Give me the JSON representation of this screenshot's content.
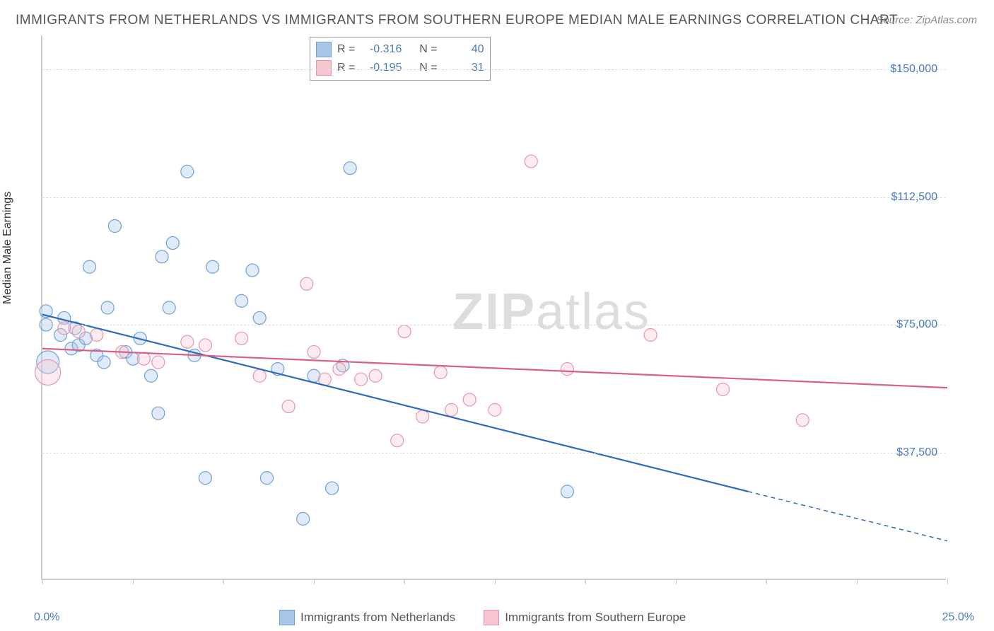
{
  "title": "IMMIGRANTS FROM NETHERLANDS VS IMMIGRANTS FROM SOUTHERN EUROPE MEDIAN MALE EARNINGS CORRELATION CHART",
  "source_label": "Source:",
  "source_name": "ZipAtlas.com",
  "watermark_zip": "ZIP",
  "watermark_atlas": "atlas",
  "y_axis_label": "Median Male Earnings",
  "chart": {
    "type": "scatter",
    "background_color": "#ffffff",
    "grid_color": "#dddddd",
    "axis_color": "#cccccc",
    "tick_label_color": "#4a7ab8",
    "xlim": [
      0,
      25
    ],
    "ylim": [
      0,
      160000
    ],
    "x_ticks": [
      0,
      2.5,
      5,
      7.5,
      10,
      12.5,
      15,
      17.5,
      20,
      22.5,
      25
    ],
    "x_tick_labels": {
      "0": "0.0%",
      "25": "25.0%"
    },
    "y_gridlines": [
      37500,
      75000,
      112500,
      150000
    ],
    "y_tick_labels": [
      "$37,500",
      "$75,000",
      "$112,500",
      "$150,000"
    ],
    "marker_radius": 9,
    "marker_fill_opacity": 0.35,
    "marker_stroke_width": 1.2,
    "line_width": 2.2
  },
  "series": [
    {
      "name": "Immigrants from Netherlands",
      "color_fill": "#a8c5e8",
      "color_stroke": "#6da0d8",
      "line_color": "#2b6cb8",
      "R": "-0.316",
      "N": "40",
      "regression": {
        "x1": 0,
        "y1": 78000,
        "x2": 19.5,
        "y2": 26000,
        "x2_ext": 25,
        "y2_ext": 11500
      },
      "points": [
        {
          "x": 0.1,
          "y": 79000
        },
        {
          "x": 0.1,
          "y": 75000
        },
        {
          "x": 0.15,
          "y": 64000,
          "r": 16
        },
        {
          "x": 0.5,
          "y": 72000
        },
        {
          "x": 0.6,
          "y": 77000
        },
        {
          "x": 0.8,
          "y": 68000
        },
        {
          "x": 0.9,
          "y": 74000
        },
        {
          "x": 1.0,
          "y": 69000
        },
        {
          "x": 1.2,
          "y": 71000
        },
        {
          "x": 1.3,
          "y": 92000
        },
        {
          "x": 1.5,
          "y": 66000
        },
        {
          "x": 1.7,
          "y": 64000
        },
        {
          "x": 1.8,
          "y": 80000
        },
        {
          "x": 2.0,
          "y": 104000
        },
        {
          "x": 2.3,
          "y": 67000
        },
        {
          "x": 2.5,
          "y": 65000
        },
        {
          "x": 2.7,
          "y": 71000
        },
        {
          "x": 3.0,
          "y": 60000
        },
        {
          "x": 3.2,
          "y": 49000
        },
        {
          "x": 3.3,
          "y": 95000
        },
        {
          "x": 3.5,
          "y": 80000
        },
        {
          "x": 3.6,
          "y": 99000
        },
        {
          "x": 4.0,
          "y": 120000
        },
        {
          "x": 4.2,
          "y": 66000
        },
        {
          "x": 4.5,
          "y": 30000
        },
        {
          "x": 4.7,
          "y": 92000
        },
        {
          "x": 5.5,
          "y": 82000
        },
        {
          "x": 5.8,
          "y": 91000
        },
        {
          "x": 6.0,
          "y": 77000
        },
        {
          "x": 6.2,
          "y": 30000
        },
        {
          "x": 6.5,
          "y": 62000
        },
        {
          "x": 7.2,
          "y": 18000
        },
        {
          "x": 7.5,
          "y": 60000
        },
        {
          "x": 8.0,
          "y": 27000
        },
        {
          "x": 8.3,
          "y": 63000
        },
        {
          "x": 8.5,
          "y": 121000
        },
        {
          "x": 14.5,
          "y": 26000
        }
      ]
    },
    {
      "name": "Immigrants from Southern Europe",
      "color_fill": "#f5c5d0",
      "color_stroke": "#e895aa",
      "line_color": "#d86088",
      "R": "-0.195",
      "N": "31",
      "regression": {
        "x1": 0,
        "y1": 68000,
        "x2": 25,
        "y2": 56500
      },
      "points": [
        {
          "x": 0.15,
          "y": 61000,
          "r": 18
        },
        {
          "x": 0.6,
          "y": 74000
        },
        {
          "x": 1.0,
          "y": 73000
        },
        {
          "x": 1.5,
          "y": 72000
        },
        {
          "x": 2.2,
          "y": 67000
        },
        {
          "x": 2.8,
          "y": 65000
        },
        {
          "x": 3.2,
          "y": 64000
        },
        {
          "x": 4.0,
          "y": 70000
        },
        {
          "x": 4.5,
          "y": 69000
        },
        {
          "x": 5.5,
          "y": 71000
        },
        {
          "x": 6.0,
          "y": 60000
        },
        {
          "x": 6.8,
          "y": 51000
        },
        {
          "x": 7.3,
          "y": 87000
        },
        {
          "x": 7.5,
          "y": 67000
        },
        {
          "x": 7.8,
          "y": 59000
        },
        {
          "x": 8.2,
          "y": 62000
        },
        {
          "x": 8.8,
          "y": 59000
        },
        {
          "x": 9.2,
          "y": 60000
        },
        {
          "x": 9.8,
          "y": 41000
        },
        {
          "x": 10.0,
          "y": 73000
        },
        {
          "x": 10.5,
          "y": 48000
        },
        {
          "x": 11.0,
          "y": 61000
        },
        {
          "x": 11.3,
          "y": 50000
        },
        {
          "x": 11.8,
          "y": 53000
        },
        {
          "x": 12.5,
          "y": 50000
        },
        {
          "x": 13.5,
          "y": 123000
        },
        {
          "x": 14.5,
          "y": 62000
        },
        {
          "x": 16.8,
          "y": 72000
        },
        {
          "x": 18.8,
          "y": 56000
        },
        {
          "x": 21.0,
          "y": 47000
        }
      ]
    }
  ],
  "legend_labels": {
    "R": "R =",
    "N": "N ="
  }
}
